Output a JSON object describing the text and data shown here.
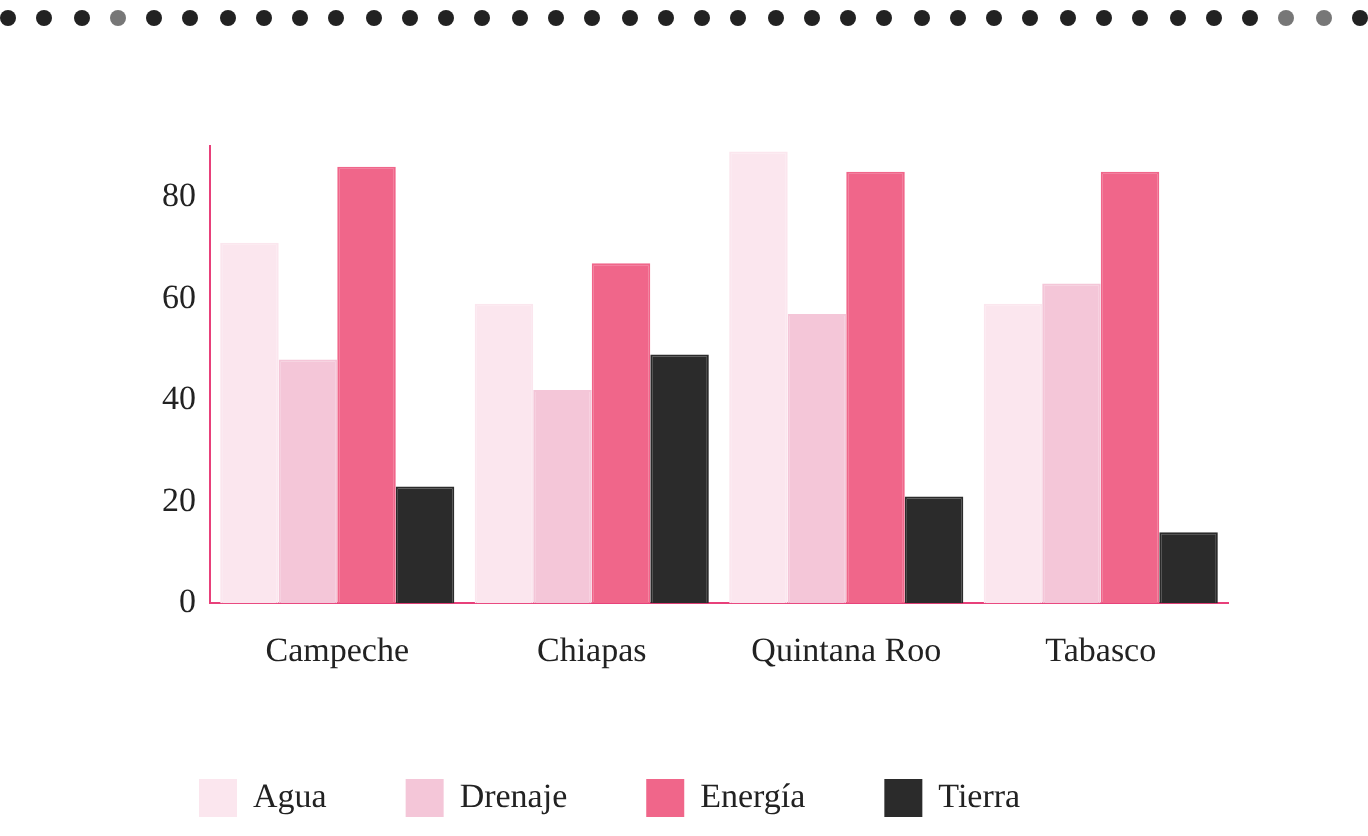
{
  "chart_data": {
    "type": "bar",
    "categories": [
      "Campeche",
      "Chiapas",
      "Quintana Roo",
      "Tabasco"
    ],
    "series": [
      {
        "name": "Agua",
        "color": "#fbe6ee",
        "values": [
          71,
          59,
          89,
          59
        ]
      },
      {
        "name": "Drenaje",
        "color": "#f4c6d8",
        "values": [
          48,
          42,
          57,
          63
        ]
      },
      {
        "name": "Energía",
        "color": "#f0668a",
        "values": [
          86,
          67,
          85,
          85
        ]
      },
      {
        "name": "Tierra",
        "color": "#2b2b2b",
        "values": [
          23,
          49,
          21,
          14
        ]
      }
    ],
    "ylim": [
      0,
      90
    ],
    "yticks": [
      0,
      20,
      40,
      60,
      80
    ],
    "grid": false,
    "legend": "bottom"
  }
}
